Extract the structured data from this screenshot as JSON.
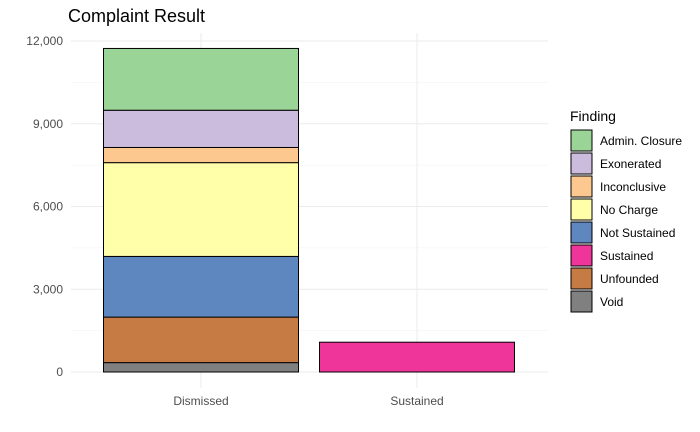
{
  "chart_data": {
    "type": "bar",
    "stacked": true,
    "title": "Complaint Result",
    "xlabel": "",
    "ylabel": "",
    "categories": [
      "Dismissed",
      "Sustained"
    ],
    "ylim": [
      0,
      12000
    ],
    "yticks": [
      0,
      3000,
      6000,
      9000,
      12000
    ],
    "ytick_labels": [
      "0",
      "3,000",
      "6,000",
      "9,000",
      "12,000"
    ],
    "grid": true,
    "legend": {
      "title": "Finding",
      "position": "right"
    },
    "series": [
      {
        "name": "Void",
        "color": "#808080",
        "values": [
          340,
          0
        ]
      },
      {
        "name": "Unfounded",
        "color": "#C77B44",
        "values": [
          1650,
          0
        ]
      },
      {
        "name": "Sustained",
        "color": "#F0359A",
        "values": [
          0,
          1080
        ]
      },
      {
        "name": "Not Sustained",
        "color": "#5E86BF",
        "values": [
          2200,
          0
        ]
      },
      {
        "name": "No Charge",
        "color": "#FFFFAA",
        "values": [
          3400,
          0
        ]
      },
      {
        "name": "Inconclusive",
        "color": "#FDC890",
        "values": [
          550,
          0
        ]
      },
      {
        "name": "Exonerated",
        "color": "#CBBCDD",
        "values": [
          1350,
          0
        ]
      },
      {
        "name": "Admin. Closure",
        "color": "#9BD497",
        "values": [
          2240,
          0
        ]
      }
    ],
    "legend_order": [
      "Admin. Closure",
      "Exonerated",
      "Inconclusive",
      "No Charge",
      "Not Sustained",
      "Sustained",
      "Unfounded",
      "Void"
    ]
  }
}
